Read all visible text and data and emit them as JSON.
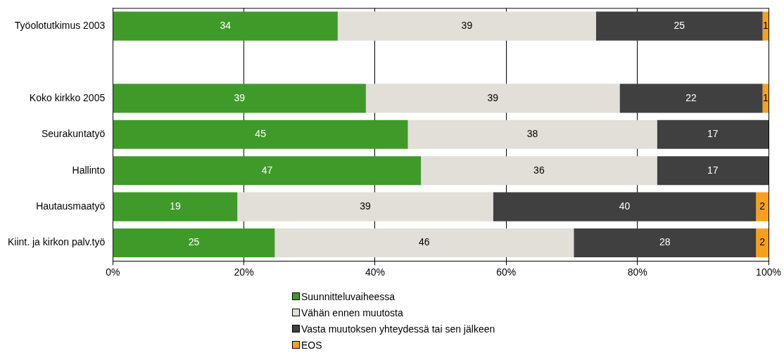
{
  "chart_data": {
    "type": "bar",
    "orientation": "horizontal",
    "stacked": true,
    "categories": [
      "Työolotutkimus 2003",
      null,
      "Koko kirkko 2005",
      "Seurakuntatyö",
      "Hallinto",
      "Hautausmaatyö",
      "Kiint. ja kirkon palv.työ"
    ],
    "series": [
      {
        "name": "Suunnitteluvaiheessa",
        "color": "#3f9a2a",
        "values": [
          34.3,
          null,
          38.6,
          45.0,
          47.0,
          19.0,
          24.7
        ],
        "value_labels": [
          "34",
          null,
          "39",
          "45",
          "47",
          "19",
          "25"
        ]
      },
      {
        "name": "Vähän ennen muutosta",
        "color": "#e2ded8",
        "values": [
          39.4,
          null,
          38.7,
          38.0,
          36.0,
          39.0,
          45.6
        ],
        "value_labels": [
          "39",
          null,
          "39",
          "38",
          "36",
          "39",
          "46"
        ]
      },
      {
        "name": "Vasta muutoksen yhteydessä tai sen jälkeen",
        "color": "#404040",
        "values": [
          25.4,
          null,
          21.8,
          17.0,
          17.0,
          40.1,
          27.8
        ],
        "value_labels": [
          "25",
          null,
          "22",
          "17",
          "17",
          "40",
          "28"
        ]
      },
      {
        "name": "EOS",
        "color": "#f7a11a",
        "values": [
          0.9,
          null,
          0.9,
          null,
          null,
          1.9,
          1.9
        ],
        "value_labels": [
          "1",
          null,
          "1",
          null,
          null,
          "2",
          "2"
        ]
      }
    ],
    "xlim": [
      0,
      100
    ],
    "xticks": [
      {
        "value": 0,
        "label": "0%"
      },
      {
        "value": 20,
        "label": "20%"
      },
      {
        "value": 40,
        "label": "40%"
      },
      {
        "value": 60,
        "label": "60%"
      },
      {
        "value": 80,
        "label": "80%"
      },
      {
        "value": 100,
        "label": "100%"
      }
    ],
    "grid": "x",
    "legend": "bottom"
  }
}
